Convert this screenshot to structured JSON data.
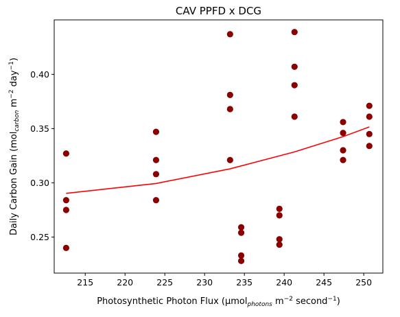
{
  "chart_data": {
    "type": "scatter",
    "title": "CAV PPFD x DCG",
    "xlabel": {
      "main": "Photosynthetic Photon Flux (μmol",
      "sub": "photons",
      "rest": " m",
      "sup1": "−2",
      "rest2": " second",
      "sup2": "−1",
      "end": ")"
    },
    "ylabel": {
      "main": "Daily Carbon Gain (mol",
      "sub": "carbon",
      "rest": " m",
      "sup1": "−2",
      "rest2": " day",
      "sup2": "−1",
      "end": ")"
    },
    "xlim": [
      211.1,
      252.4
    ],
    "ylim": [
      0.2168,
      0.4502
    ],
    "xticks": [
      215,
      220,
      225,
      230,
      235,
      240,
      245,
      250
    ],
    "yticks": [
      0.25,
      0.3,
      0.35,
      0.4
    ],
    "ytick_labels": [
      "0.25",
      "0.30",
      "0.35",
      "0.40"
    ],
    "xtick_labels": [
      "215",
      "220",
      "225",
      "230",
      "235",
      "240",
      "245",
      "250"
    ],
    "series": [
      {
        "kind": "points",
        "color": "#8b0000",
        "points": [
          [
            212.6,
            0.327
          ],
          [
            212.6,
            0.284
          ],
          [
            212.6,
            0.275
          ],
          [
            212.6,
            0.24
          ],
          [
            223.9,
            0.347
          ],
          [
            223.9,
            0.321
          ],
          [
            223.9,
            0.308
          ],
          [
            223.9,
            0.284
          ],
          [
            233.2,
            0.437
          ],
          [
            233.2,
            0.381
          ],
          [
            233.2,
            0.368
          ],
          [
            233.2,
            0.321
          ],
          [
            234.6,
            0.259
          ],
          [
            234.6,
            0.254
          ],
          [
            234.6,
            0.233
          ],
          [
            234.6,
            0.228
          ],
          [
            239.4,
            0.276
          ],
          [
            239.4,
            0.27
          ],
          [
            239.4,
            0.248
          ],
          [
            239.4,
            0.243
          ],
          [
            241.3,
            0.439
          ],
          [
            241.3,
            0.407
          ],
          [
            241.3,
            0.39
          ],
          [
            241.3,
            0.361
          ],
          [
            247.4,
            0.356
          ],
          [
            247.4,
            0.346
          ],
          [
            247.4,
            0.33
          ],
          [
            247.4,
            0.321
          ],
          [
            250.7,
            0.371
          ],
          [
            250.7,
            0.361
          ],
          [
            250.7,
            0.345
          ],
          [
            250.7,
            0.334
          ]
        ]
      },
      {
        "kind": "line",
        "color": "#ff0000",
        "points": [
          [
            212.6,
            0.2903
          ],
          [
            223.9,
            0.2994
          ],
          [
            233.2,
            0.3129
          ],
          [
            241.3,
            0.3285
          ],
          [
            247.4,
            0.3426
          ],
          [
            250.7,
            0.3515
          ]
        ]
      }
    ],
    "grid": false,
    "legend": "none"
  }
}
